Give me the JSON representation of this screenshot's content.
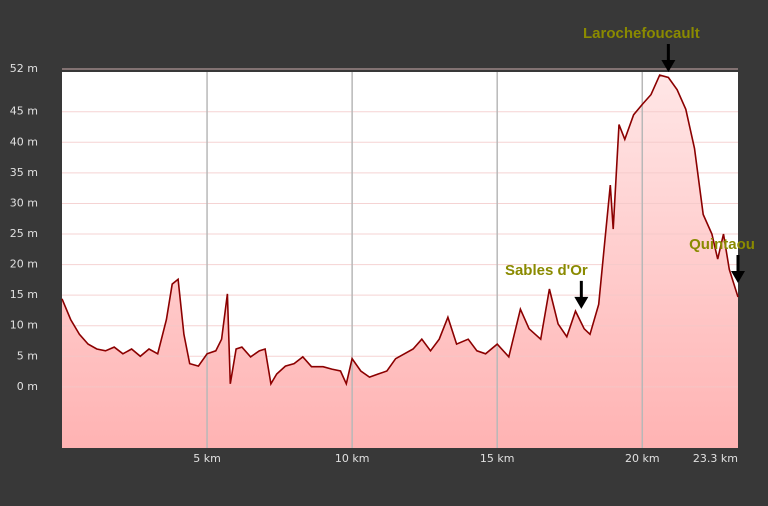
{
  "chart_data": {
    "type": "area",
    "x": [
      0,
      0.3,
      0.6,
      0.9,
      1.2,
      1.5,
      1.8,
      2.1,
      2.4,
      2.7,
      3.0,
      3.3,
      3.6,
      3.8,
      4.0,
      4.2,
      4.4,
      4.7,
      5.0,
      5.3,
      5.5,
      5.7,
      5.8,
      6.0,
      6.2,
      6.5,
      6.8,
      7.0,
      7.2,
      7.4,
      7.7,
      8.0,
      8.3,
      8.6,
      9.0,
      9.3,
      9.6,
      9.8,
      10.0,
      10.3,
      10.6,
      10.9,
      11.2,
      11.5,
      11.8,
      12.1,
      12.4,
      12.7,
      13.0,
      13.3,
      13.6,
      14.0,
      14.3,
      14.6,
      15.0,
      15.4,
      15.8,
      16.1,
      16.5,
      16.8,
      17.1,
      17.4,
      17.7,
      18.0,
      18.2,
      18.5,
      18.7,
      18.9,
      19.0,
      19.2,
      19.4,
      19.7,
      20.0,
      20.3,
      20.6,
      20.9,
      21.2,
      21.5,
      21.8,
      22.1,
      22.4,
      22.6,
      22.8,
      23.0,
      23.3
    ],
    "values": [
      14.4,
      11,
      8.6,
      7,
      6.2,
      5.9,
      6.5,
      5.4,
      6.2,
      5,
      6.2,
      5.4,
      11,
      16.8,
      17.6,
      8.6,
      3.8,
      3.4,
      5.4,
      5.9,
      7.8,
      15.2,
      0.5,
      6.2,
      6.5,
      4.9,
      5.9,
      6.2,
      0.5,
      2.1,
      3.4,
      3.8,
      4.9,
      3.3,
      3.3,
      2.9,
      2.6,
      0.5,
      4.6,
      2.6,
      1.6,
      2.1,
      2.6,
      4.6,
      5.4,
      6.2,
      7.8,
      5.9,
      7.8,
      11.4,
      7,
      7.8,
      5.9,
      5.4,
      7,
      4.9,
      12.7,
      9.5,
      7.8,
      16,
      10.3,
      8.2,
      12.4,
      9.5,
      8.6,
      13.5,
      23.3,
      33,
      25.8,
      42.9,
      40.5,
      44.5,
      46.2,
      47.8,
      51,
      50.6,
      48.6,
      45.4,
      39,
      28.2,
      25,
      20.9,
      25,
      19.2,
      14.7
    ],
    "color": "#8b0000",
    "xlim": [
      0,
      23.3
    ],
    "ylim": [
      -10,
      51.5
    ],
    "xticks": [
      {
        "value": 5,
        "label": "5 km"
      },
      {
        "value": 10,
        "label": "10 km"
      },
      {
        "value": 15,
        "label": "15 km"
      },
      {
        "value": 20,
        "label": "20 km"
      },
      {
        "value": 23.3,
        "label": "23.3 km"
      }
    ],
    "yticks": [
      {
        "value": 0,
        "label": "0 m"
      },
      {
        "value": 5,
        "label": "5 m"
      },
      {
        "value": 10,
        "label": "10 m"
      },
      {
        "value": 15,
        "label": "15 m"
      },
      {
        "value": 20,
        "label": "20 m"
      },
      {
        "value": 25,
        "label": "25 m"
      },
      {
        "value": 30,
        "label": "30 m"
      },
      {
        "value": 35,
        "label": "35 m"
      },
      {
        "value": 40,
        "label": "40 m"
      },
      {
        "value": 45,
        "label": "45 m"
      },
      {
        "value": 52,
        "label": "52 m"
      }
    ],
    "grid": true,
    "annotations": [
      {
        "text": "Larochefoucault",
        "x": 20.9
      },
      {
        "text": "Sables d'Or",
        "x": 17.9
      },
      {
        "text": "Quintaou",
        "x": 23.3
      }
    ]
  }
}
